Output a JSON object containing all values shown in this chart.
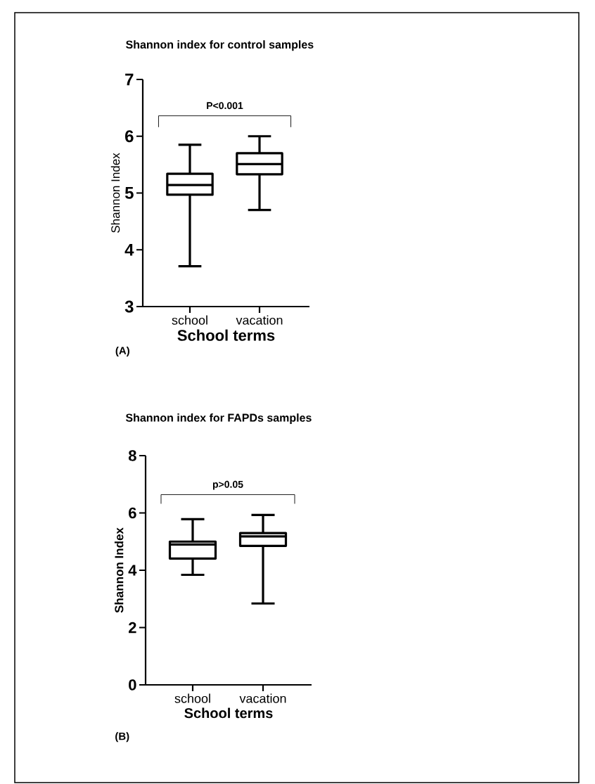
{
  "chart_data": [
    {
      "type": "box",
      "title": "Shannon index for control samples",
      "xlabel": "School terms",
      "ylabel": "Shannon Index",
      "categories": [
        "school",
        "vacation"
      ],
      "series": [
        {
          "color": "#000000",
          "boxes": [
            {
              "low": 3.71,
              "q1": 4.97,
              "median": 5.14,
              "q3": 5.34,
              "high": 5.85
            },
            {
              "low": 4.7,
              "q1": 5.33,
              "median": 5.51,
              "q3": 5.7,
              "high": 6.0
            }
          ]
        }
      ],
      "ylim": [
        3,
        7
      ],
      "yticks": [
        3,
        4,
        5,
        6,
        7
      ],
      "annotations": [
        "P<0.001",
        "(A)"
      ]
    },
    {
      "type": "box",
      "title": "Shannon index for FAPDs samples",
      "xlabel": "School terms",
      "ylabel": "Shannon Index",
      "categories": [
        "school",
        "vacation"
      ],
      "series": [
        {
          "color": "#000000",
          "boxes": [
            {
              "low": 3.84,
              "q1": 4.41,
              "median": 4.9,
              "q3": 5.0,
              "high": 5.78
            },
            {
              "low": 2.84,
              "q1": 4.85,
              "median": 5.18,
              "q3": 5.3,
              "high": 5.93
            }
          ]
        }
      ],
      "ylim": [
        0,
        8
      ],
      "yticks": [
        0,
        2,
        4,
        6,
        8
      ],
      "annotations": [
        "p>0.05",
        "(B)"
      ]
    }
  ]
}
